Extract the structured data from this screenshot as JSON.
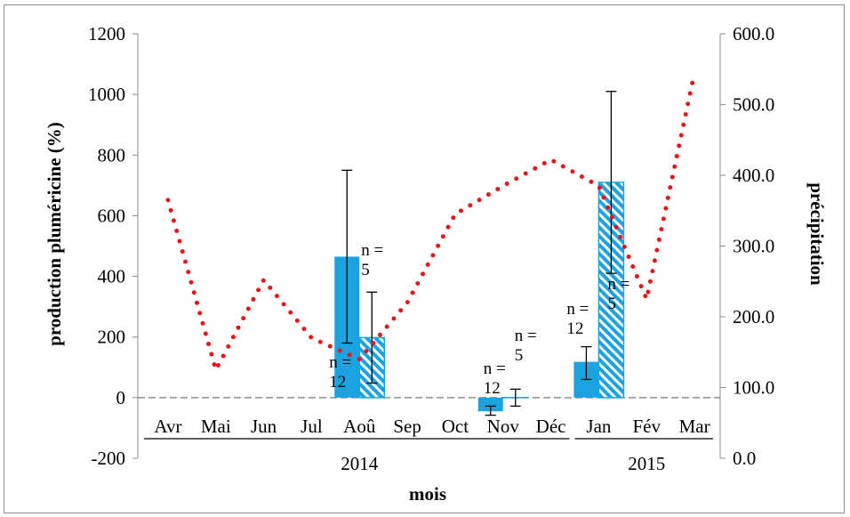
{
  "chart_data": {
    "type": "bar",
    "xlabel": "mois",
    "ylabel": "production pluméricine (%)",
    "y2label": "précipitation",
    "categories": [
      "Avr",
      "Mai",
      "Jun",
      "Jul",
      "Aoû",
      "Sep",
      "Oct",
      "Nov",
      "Déc",
      "Jan",
      "Fév",
      "Mar"
    ],
    "years": [
      {
        "label": "2014",
        "from": 0,
        "to": 8
      },
      {
        "label": "2015",
        "from": 9,
        "to": 11
      }
    ],
    "ylim": [
      -200,
      1200
    ],
    "yticks": [
      -200,
      0,
      200,
      400,
      600,
      800,
      1000,
      1200
    ],
    "y2lim": [
      0,
      600
    ],
    "y2ticks": [
      "0.0",
      "100.0",
      "200.0",
      "300.0",
      "400.0",
      "500.0",
      "600.0"
    ],
    "bar_series": [
      {
        "style": "solid",
        "color": "#1aa3e0",
        "bars": [
          {
            "category": "Aoû",
            "value": 465,
            "err_low": 180,
            "err_high": 750,
            "n_label": "n = 12"
          },
          {
            "category": "Nov",
            "value": -45,
            "err_low": -58,
            "err_high": -28,
            "n_label": "n = 12"
          },
          {
            "category": "Jan",
            "value": 118,
            "err_low": 60,
            "err_high": 168,
            "n_label": "n = 12"
          }
        ]
      },
      {
        "style": "hatched",
        "color": "#1aa3e0",
        "bars": [
          {
            "category": "Aoû",
            "value": 198,
            "err_low": 48,
            "err_high": 348,
            "n_label": "n = 5"
          },
          {
            "category": "Nov",
            "value": 0,
            "err_low": -28,
            "err_high": 28,
            "n_label": "n = 5"
          },
          {
            "category": "Jan",
            "value": 710,
            "err_low": 410,
            "err_high": 1010,
            "n_label": "n = 5"
          }
        ]
      }
    ],
    "line_series": {
      "axis": "secondary",
      "style": "dotted",
      "color": "#e8141c",
      "points": [
        {
          "category": "Avr",
          "value": 365
        },
        {
          "category": "Mai",
          "value": 125
        },
        {
          "category": "Jun",
          "value": 252
        },
        {
          "category": "Jul",
          "value": 170
        },
        {
          "category": "Aoû",
          "value": 140
        },
        {
          "category": "Sep",
          "value": 220
        },
        {
          "category": "Oct",
          "value": 345
        },
        {
          "category": "Nov",
          "value": 385
        },
        {
          "category": "Déc",
          "value": 422
        },
        {
          "category": "Jan",
          "value": 385
        },
        {
          "category": "Fév",
          "value": 225
        },
        {
          "category": "Mar",
          "value": 545
        }
      ]
    },
    "gridlines": false,
    "legend": "none"
  }
}
